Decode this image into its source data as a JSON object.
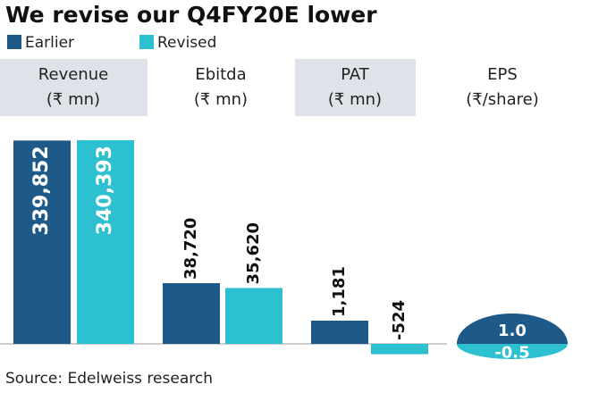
{
  "chart_data": {
    "type": "bar",
    "title": "We revise our Q4FY20E lower",
    "categories": [
      "Revenue",
      "Ebitda",
      "PAT",
      "EPS"
    ],
    "units": [
      "(₹ mn)",
      "(₹ mn)",
      "(₹ mn)",
      "(₹/share)"
    ],
    "series": [
      {
        "name": "Earlier",
        "color": "#1d5a8a",
        "values": [
          339852,
          38720,
          1181,
          1.0
        ],
        "value_labels": [
          "339,852",
          "38,720",
          "1,181",
          "1.0"
        ]
      },
      {
        "name": "Revised",
        "color": "#2cc0d0",
        "values": [
          340393,
          35620,
          -524,
          -0.5
        ],
        "value_labels": [
          "340,393",
          "35,620",
          "-524",
          "-0.5"
        ]
      }
    ],
    "source": "Source: Edelweiss research"
  }
}
